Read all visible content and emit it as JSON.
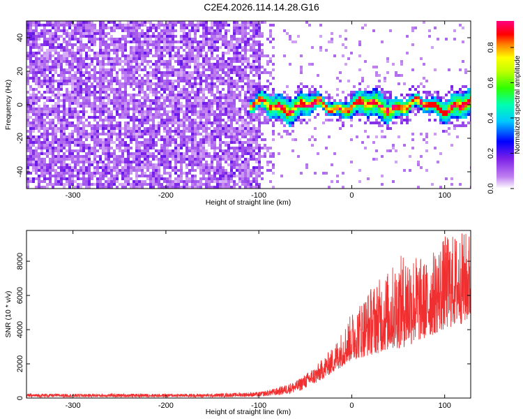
{
  "title": "C2E4.2026.114.14.28.G16",
  "chart_data": [
    {
      "type": "heatmap",
      "xlabel": "Height of straight line (km)",
      "ylabel": "Frequency (Hz)",
      "xlim": [
        -350,
        128
      ],
      "ylim": [
        -50,
        50
      ],
      "xticks": [
        -300,
        -200,
        -100,
        0,
        100
      ],
      "yticks": [
        -40,
        -20,
        0,
        20,
        40
      ],
      "colorbar": {
        "label": "Normalized spectral amplitude",
        "range": [
          0,
          0.95
        ],
        "ticks": [
          "0.0",
          "0.2",
          "0.4",
          "0.6",
          "0.8"
        ]
      },
      "description_series": [
        {
          "name": "noise region",
          "x_range": [
            -350,
            -100
          ],
          "amplitude": 0.15
        },
        {
          "name": "signal band",
          "x_range": [
            -110,
            128
          ],
          "frequency_center": 0,
          "bandwidth_hz": 10,
          "peak_amplitude": 0.9
        }
      ]
    },
    {
      "type": "line",
      "xlabel": "Height of straight line (km)",
      "ylabel": "SNR (10 * v/v)",
      "xlim": [
        -350,
        128
      ],
      "ylim": [
        0,
        9800
      ],
      "xticks": [
        -300,
        -200,
        -100,
        0,
        100
      ],
      "yticks": [
        0,
        2000,
        4000,
        6000,
        8000
      ],
      "series": [
        {
          "name": "SNR",
          "color": "#f03030",
          "envelope_x": [
            -350,
            -150,
            -100,
            -80,
            -60,
            -40,
            -20,
            0,
            20,
            40,
            60,
            80,
            100,
            128
          ],
          "envelope_low": [
            50,
            50,
            80,
            150,
            300,
            800,
            1500,
            2200,
            2500,
            2800,
            3000,
            3500,
            4000,
            4500
          ],
          "envelope_high": [
            250,
            250,
            350,
            600,
            1000,
            1800,
            3000,
            5000,
            6500,
            7500,
            8800,
            8000,
            9500,
            9800
          ]
        }
      ]
    }
  ]
}
